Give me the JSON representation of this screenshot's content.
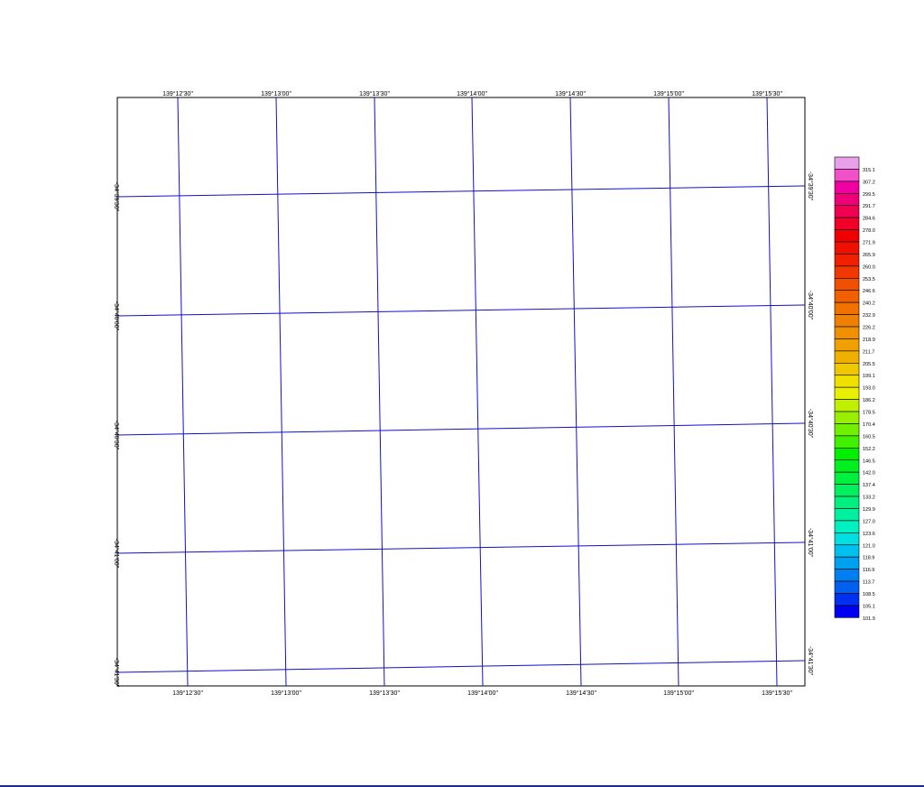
{
  "map": {
    "top_longitude_labels": [
      "139°12'30\"",
      "139°13'00\"",
      "139°13'30\"",
      "139°14'00\"",
      "139°14'30\"",
      "139°15'00\"",
      "139°15'30\""
    ],
    "bottom_longitude_labels": [
      "139°12'30\"",
      "139°13'00\"",
      "139°13'30\"",
      "139°14'00\"",
      "139°14'30\"",
      "139°15'00\"",
      "139°15'30\""
    ],
    "left_latitude_labels": [
      "-34°39'30\"",
      "-34°40'00\"",
      "-34°40'30\"",
      "-34°41'00\"",
      "-34°41'30\""
    ],
    "right_latitude_labels": [
      "-34°39'30\"",
      "-34°40'00\"",
      "-34°40'30\"",
      "-34°41'00\"",
      "-34°41'30\""
    ],
    "grid_color": "#1010c8"
  },
  "legend": {
    "values": [
      "315.1",
      "307.2",
      "299.5",
      "291.7",
      "284.6",
      "278.0",
      "271.9",
      "265.9",
      "260.0",
      "253.5",
      "246.6",
      "240.2",
      "232.9",
      "226.2",
      "218.9",
      "211.7",
      "205.5",
      "199.1",
      "193.0",
      "186.2",
      "178.5",
      "170.4",
      "160.5",
      "152.2",
      "146.5",
      "142.0",
      "137.4",
      "133.2",
      "129.9",
      "127.0",
      "123.6",
      "121.0",
      "118.9",
      "116.9",
      "113.7",
      "108.5",
      "105.1",
      "101.9"
    ],
    "colors": [
      "#e8a0e8",
      "#f050c8",
      "#f000a0",
      "#f00078",
      "#f00050",
      "#f00028",
      "#f00000",
      "#f01000",
      "#f02000",
      "#f03800",
      "#f05000",
      "#f06000",
      "#f07000",
      "#f08000",
      "#f09000",
      "#f0a000",
      "#f0b000",
      "#f0c800",
      "#f0e000",
      "#e8f000",
      "#c0f000",
      "#98f000",
      "#70f000",
      "#40f000",
      "#00f000",
      "#00f020",
      "#00f040",
      "#00f060",
      "#00f080",
      "#00f0a0",
      "#00f0c0",
      "#00e0e0",
      "#00c0f0",
      "#00a0f0",
      "#0080f0",
      "#0060f0",
      "#0030f0",
      "#0000f0"
    ]
  }
}
